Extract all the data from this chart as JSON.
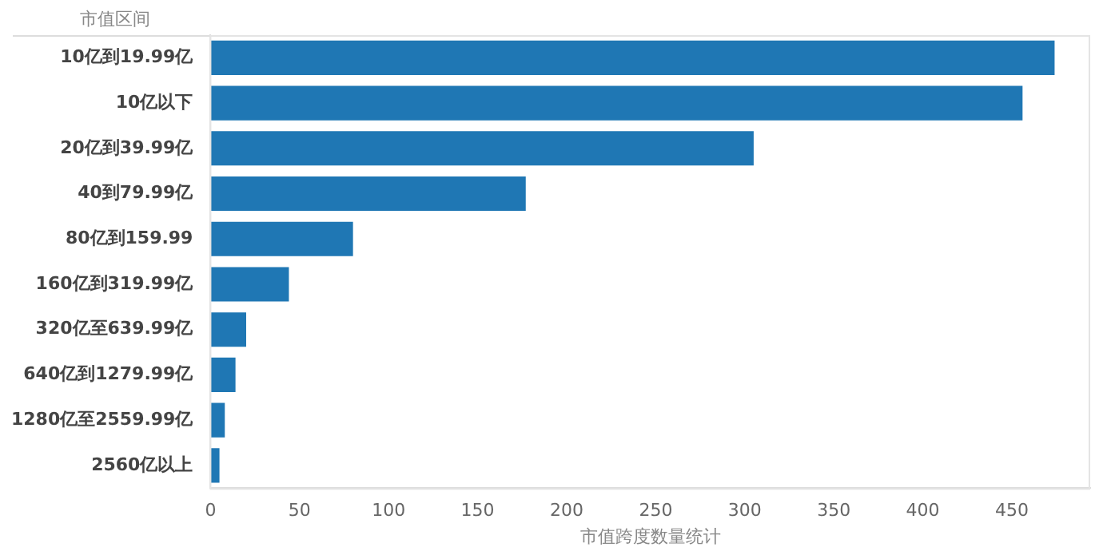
{
  "chart_data": {
    "type": "bar",
    "orientation": "horizontal",
    "ylabel": "市值区间",
    "xlabel": "市值跨度数量统计",
    "categories": [
      "10亿到19.99亿",
      "10亿以下",
      "20亿到39.99亿",
      "40到79.99亿",
      "80亿到159.99",
      "160亿到319.99亿",
      "320亿至639.99亿",
      "640亿到1279.99亿",
      "1280亿至2559.99亿",
      "2560亿以上"
    ],
    "values": [
      474,
      456,
      305,
      177,
      80,
      44,
      20,
      14,
      8,
      5
    ],
    "color": "#1f77b4",
    "xlim": [
      0,
      494
    ],
    "xticks": [
      0,
      50,
      100,
      150,
      200,
      250,
      300,
      350,
      400,
      450
    ],
    "grid": false
  }
}
